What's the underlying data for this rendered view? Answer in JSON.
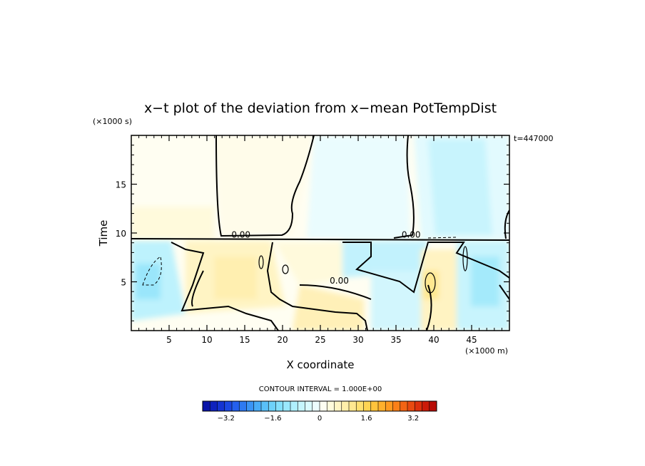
{
  "chart_data": {
    "type": "heatmap",
    "title": "x−t plot of the deviation from x−mean PotTempDist",
    "xlabel": "X coordinate",
    "ylabel": "Time",
    "x_unit": "(×1000 m)",
    "y_unit": "(×1000 s)",
    "time_stamp": "t=447000",
    "contour_interval_text": "CONTOUR INTERVAL = 1.000E+00",
    "xlim": [
      0,
      50
    ],
    "ylim": [
      0,
      20
    ],
    "x_ticks": [
      5,
      10,
      15,
      20,
      25,
      30,
      35,
      40,
      45
    ],
    "y_ticks": [
      5,
      10,
      15
    ],
    "contour_labels": [
      {
        "text": "0.00",
        "x": 14.5,
        "y": 9.8
      },
      {
        "text": "0.00",
        "x": 27.5,
        "y": 5.1
      },
      {
        "text": "0.00",
        "x": 37.0,
        "y": 9.8
      }
    ],
    "colorbar": {
      "min": -4.0,
      "max": 4.0,
      "tick_labels": [
        "−3.2",
        "−1.6",
        "0",
        "1.6",
        "3.2"
      ],
      "tick_values": [
        -3.2,
        -1.6,
        0,
        1.6,
        3.2
      ],
      "colors": [
        "#0a14a8",
        "#0f22bd",
        "#1534d2",
        "#1c48e2",
        "#2460ee",
        "#2e7af2",
        "#3a94f6",
        "#48acf8",
        "#5ac0f8",
        "#6ed2fa",
        "#84e0fc",
        "#9ae8fc",
        "#b0f0fd",
        "#c6f6fd",
        "#dafbfe",
        "#edfdfe",
        "#fefef2",
        "#fffbdc",
        "#fff5c4",
        "#ffefaa",
        "#ffe890",
        "#ffe070",
        "#ffd452",
        "#ffc43c",
        "#ffb02c",
        "#ff9a20",
        "#fa8018",
        "#f26414",
        "#e84a10",
        "#dc300c",
        "#cc1a08",
        "#b80c06"
      ]
    }
  }
}
